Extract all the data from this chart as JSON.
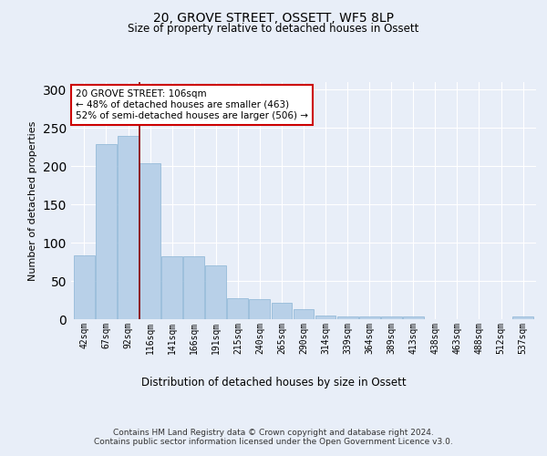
{
  "title1": "20, GROVE STREET, OSSETT, WF5 8LP",
  "title2": "Size of property relative to detached houses in Ossett",
  "xlabel": "Distribution of detached houses by size in Ossett",
  "ylabel": "Number of detached properties",
  "categories": [
    "42sqm",
    "67sqm",
    "92sqm",
    "116sqm",
    "141sqm",
    "166sqm",
    "191sqm",
    "215sqm",
    "240sqm",
    "265sqm",
    "290sqm",
    "314sqm",
    "339sqm",
    "364sqm",
    "389sqm",
    "413sqm",
    "438sqm",
    "463sqm",
    "488sqm",
    "512sqm",
    "537sqm"
  ],
  "values": [
    84,
    229,
    240,
    204,
    82,
    82,
    70,
    27,
    26,
    22,
    13,
    5,
    4,
    4,
    4,
    3,
    0,
    0,
    0,
    0,
    3
  ],
  "bar_color": "#b8d0e8",
  "bar_edge_color": "#8ab4d4",
  "vline_x": 2.5,
  "vline_color": "#8b0000",
  "annotation_text": "20 GROVE STREET: 106sqm\n← 48% of detached houses are smaller (463)\n52% of semi-detached houses are larger (506) →",
  "annotation_box_color": "white",
  "annotation_box_edge": "#cc0000",
  "ylim": [
    0,
    310
  ],
  "yticks": [
    0,
    50,
    100,
    150,
    200,
    250,
    300
  ],
  "footnote": "Contains HM Land Registry data © Crown copyright and database right 2024.\nContains public sector information licensed under the Open Government Licence v3.0.",
  "background_color": "#e8eef8",
  "grid_color": "white"
}
